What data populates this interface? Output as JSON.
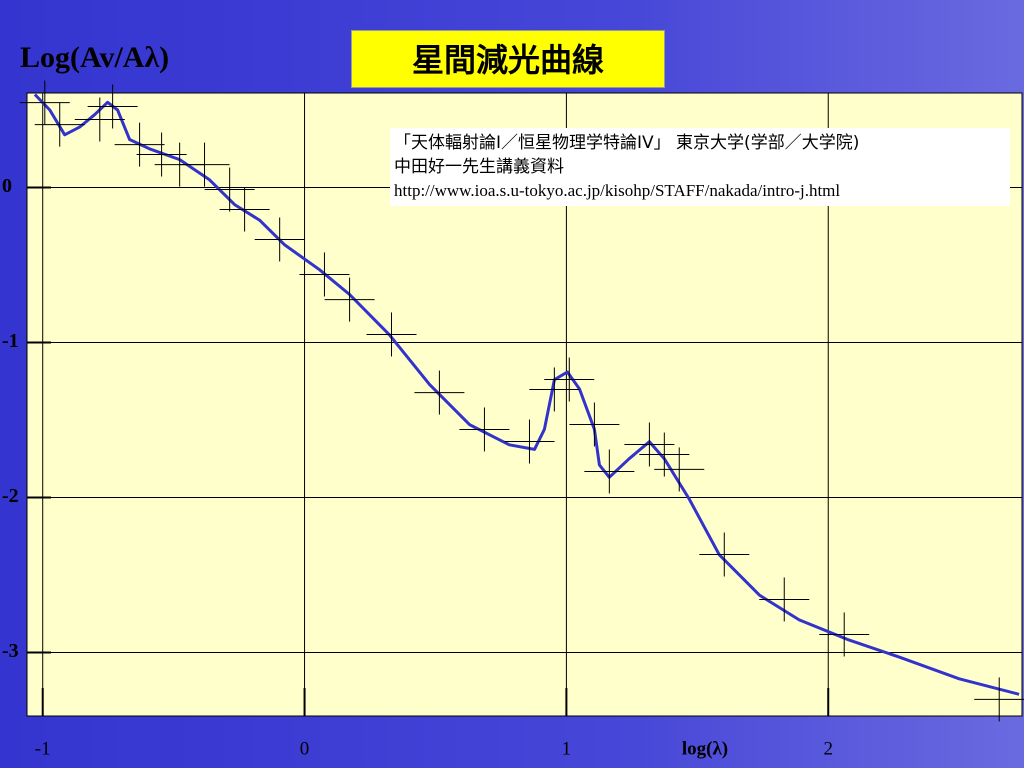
{
  "chart_data": {
    "type": "line",
    "title": "星間減光曲線",
    "y_label": "Log(Av/Aλ)",
    "x_label": "log(λ)",
    "notes": [
      "「天体輻射論I／恒星物理学特論IV」 東京大学(学部／大学院)",
      "中田好一先生講義資料",
      "http://www.ioa.s.u-tokyo.ac.jp/kisohp/STAFF/nakada/intro-j.html"
    ],
    "xlim": [
      -1.06,
      2.74
    ],
    "xticks": [
      -1,
      0,
      1,
      2
    ],
    "ylim": [
      -3.41,
      0.61
    ],
    "yticks": [
      0,
      -1,
      -2,
      -3
    ],
    "grid": true,
    "plot_color": "#ffffcc",
    "series": [
      {
        "color": "#3333cc",
        "x": [
          -1.03,
          -0.973,
          -0.916,
          -0.859,
          -0.802,
          -0.752,
          -0.714,
          -0.668,
          -0.592,
          -0.477,
          -0.363,
          -0.267,
          -0.172,
          -0.076,
          0.057,
          0.172,
          0.324,
          0.477,
          0.63,
          0.782,
          0.878,
          0.916,
          0.954,
          1.004,
          1.05,
          1.107,
          1.126,
          1.164,
          1.24,
          1.317,
          1.374,
          1.469,
          1.584,
          1.737,
          1.889,
          2.08,
          2.271,
          2.5,
          2.729
        ],
        "values": [
          0.6,
          0.5,
          0.34,
          0.39,
          0.47,
          0.55,
          0.5,
          0.31,
          0.25,
          0.18,
          0.05,
          -0.11,
          -0.21,
          -0.37,
          -0.53,
          -0.69,
          -0.95,
          -1.27,
          -1.53,
          -1.66,
          -1.69,
          -1.56,
          -1.24,
          -1.19,
          -1.3,
          -1.56,
          -1.79,
          -1.87,
          -1.75,
          -1.64,
          -1.75,
          -2.01,
          -2.37,
          -2.63,
          -2.79,
          -2.92,
          -3.03,
          -3.17,
          -3.27
        ]
      }
    ],
    "points": {
      "color": "#000000",
      "x": [
        -0.992,
        -0.935,
        -0.782,
        -0.733,
        -0.63,
        -0.546,
        -0.477,
        -0.382,
        -0.286,
        -0.229,
        -0.095,
        0.076,
        0.172,
        0.332,
        0.515,
        0.687,
        0.859,
        0.954,
        1.011,
        1.107,
        1.164,
        1.317,
        1.374,
        1.431,
        1.603,
        1.832,
        2.061,
        2.653
      ],
      "values": [
        0.548,
        0.406,
        0.439,
        0.523,
        0.277,
        0.213,
        0.148,
        0.148,
        -0.013,
        -0.142,
        -0.335,
        -0.561,
        -0.723,
        -0.948,
        -1.323,
        -1.561,
        -1.639,
        -1.303,
        -1.239,
        -1.529,
        -1.832,
        -1.658,
        -1.723,
        -1.819,
        -2.368,
        -2.658,
        -2.884,
        -3.303
      ]
    }
  }
}
